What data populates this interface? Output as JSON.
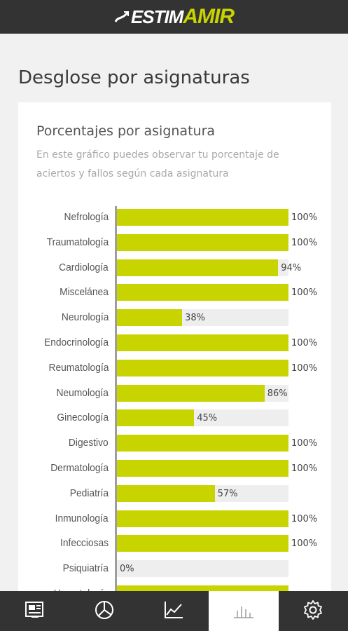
{
  "header": {
    "logo_part1": "ESTIM",
    "logo_part2": "AMIR"
  },
  "page": {
    "title": "Desglose por asignaturas"
  },
  "card": {
    "title": "Porcentajes por asignatura",
    "subtitle": "En este gráfico puedes observar tu porcentaje de aciertos y fallos según cada asignatura"
  },
  "chart_data": {
    "type": "bar",
    "orientation": "horizontal",
    "categories": [
      "Nefrología",
      "Traumatología",
      "Cardiología",
      "Miscelánea",
      "Neurología",
      "Endocrinología",
      "Reumatología",
      "Neumología",
      "Ginecología",
      "Digestivo",
      "Dermatología",
      "Pediatría",
      "Inmunología",
      "Infecciosas",
      "Psiquiatría",
      "Hematología"
    ],
    "values": [
      100,
      100,
      94,
      100,
      38,
      100,
      100,
      86,
      45,
      100,
      100,
      57,
      100,
      100,
      0,
      100
    ],
    "value_labels": [
      "100%",
      "100%",
      "94%",
      "100%",
      "38%",
      "100%",
      "100%",
      "86%",
      "45%",
      "100%",
      "100%",
      "57%",
      "100%",
      "100%",
      "0%",
      ""
    ],
    "xlim": [
      0,
      100
    ],
    "colors": {
      "fill": "#c8d400",
      "track": "#eeeeee"
    }
  },
  "nav": {
    "items": [
      {
        "icon": "newspaper-icon"
      },
      {
        "icon": "pie-chart-icon"
      },
      {
        "icon": "line-chart-icon"
      },
      {
        "icon": "bar-chart-icon",
        "active": true
      },
      {
        "icon": "gear-icon"
      }
    ]
  },
  "colors": {
    "header_bg": "#333333",
    "accent": "#c8d400",
    "page_bg": "#f1f1f1"
  }
}
